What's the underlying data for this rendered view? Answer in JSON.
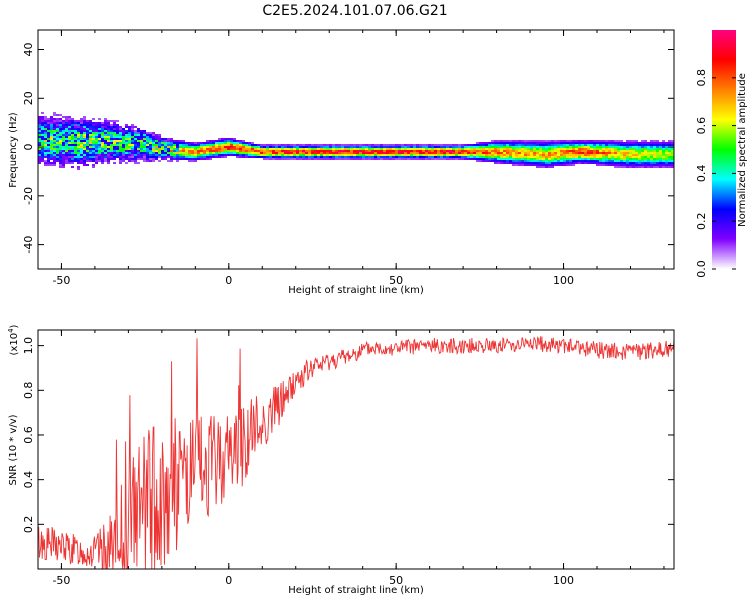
{
  "title": "C2E5.2024.101.07.06.G21",
  "chart_data": [
    {
      "type": "heatmap",
      "xlabel": "Height of straight line (km)",
      "ylabel": "Frequency (Hz)",
      "xlim": [
        -57,
        133
      ],
      "ylim": [
        -50,
        48
      ],
      "xticks": [
        -50,
        0,
        50,
        100
      ],
      "xtick_labels": [
        "-50",
        "0",
        "50",
        "100"
      ],
      "yticks": [
        -40,
        -20,
        0,
        20,
        40
      ],
      "ytick_labels": [
        "-40",
        "-20",
        "0",
        "20",
        "40"
      ],
      "colorbar": {
        "label": "Normalized spectral amplitude",
        "range": [
          0,
          1
        ],
        "ticks": [
          0.0,
          0.2,
          0.4,
          0.6,
          0.8
        ],
        "tick_labels": [
          "0.0",
          "0.2",
          "0.4",
          "0.6",
          "0.8"
        ],
        "colormap": [
          "#ffffff",
          "#8000ff",
          "#0000ff",
          "#00ffff",
          "#00ff00",
          "#ffff00",
          "#ff8000",
          "#ff0000",
          "#ff0080"
        ]
      },
      "track": [
        {
          "x": -57,
          "y": 3,
          "spread": 6,
          "amp": 0.55
        },
        {
          "x": -45,
          "y": 2,
          "spread": 6,
          "amp": 0.6
        },
        {
          "x": -35,
          "y": 2,
          "spread": 5,
          "amp": 0.55
        },
        {
          "x": -25,
          "y": 1,
          "spread": 4,
          "amp": 0.55
        },
        {
          "x": -18,
          "y": -1,
          "spread": 2.5,
          "amp": 0.65
        },
        {
          "x": -10,
          "y": -2,
          "spread": 2,
          "amp": 0.75
        },
        {
          "x": 0,
          "y": 0,
          "spread": 2,
          "amp": 0.85
        },
        {
          "x": 10,
          "y": -2,
          "spread": 1.5,
          "amp": 0.85
        },
        {
          "x": 30,
          "y": -2,
          "spread": 1.5,
          "amp": 0.9
        },
        {
          "x": 70,
          "y": -2,
          "spread": 1.5,
          "amp": 0.9
        },
        {
          "x": 80,
          "y": -2,
          "spread": 2.5,
          "amp": 0.75
        },
        {
          "x": 95,
          "y": -3,
          "spread": 3,
          "amp": 0.7
        },
        {
          "x": 105,
          "y": -2,
          "spread": 2.5,
          "amp": 0.85
        },
        {
          "x": 120,
          "y": -3,
          "spread": 3,
          "amp": 0.65
        },
        {
          "x": 133,
          "y": -3,
          "spread": 3,
          "amp": 0.6
        }
      ]
    },
    {
      "type": "line",
      "xlabel": "Height of straight line (km)",
      "ylabel": "SNR (10 * v/v)",
      "y_multiplier": "(x10",
      "y_multiplier_exp": "4",
      "y_multiplier_close": ")",
      "xlim": [
        -57,
        133
      ],
      "ylim": [
        0.0,
        1.07
      ],
      "xticks": [
        -50,
        0,
        50,
        100
      ],
      "xtick_labels": [
        "-50",
        "0",
        "50",
        "100"
      ],
      "yticks": [
        0.2,
        0.4,
        0.6,
        0.8,
        1.0
      ],
      "ytick_labels": [
        "0.2",
        "0.4",
        "0.6",
        "0.8",
        "1.0"
      ],
      "color": "#ee3333",
      "series": [
        {
          "x": [
            -57,
            -50,
            -45,
            -40,
            -35,
            -30,
            -25,
            -20,
            -15,
            -10,
            -5,
            0,
            5,
            10,
            15,
            20,
            25,
            30,
            35,
            40,
            45,
            50,
            60,
            70,
            80,
            90,
            100,
            110,
            120,
            133
          ],
          "y": [
            0.12,
            0.1,
            0.08,
            0.07,
            0.1,
            0.2,
            0.28,
            0.32,
            0.38,
            0.43,
            0.47,
            0.52,
            0.58,
            0.65,
            0.74,
            0.84,
            0.9,
            0.93,
            0.95,
            0.98,
            0.99,
            0.99,
            1.0,
            1.0,
            1.0,
            1.01,
            1.0,
            0.98,
            0.97,
            0.99
          ],
          "noise": [
            0.09,
            0.08,
            0.07,
            0.08,
            0.15,
            0.28,
            0.35,
            0.35,
            0.3,
            0.25,
            0.22,
            0.2,
            0.2,
            0.15,
            0.1,
            0.06,
            0.05,
            0.04,
            0.04,
            0.035,
            0.035,
            0.035,
            0.035,
            0.035,
            0.035,
            0.035,
            0.035,
            0.04,
            0.04,
            0.04
          ]
        }
      ]
    }
  ]
}
